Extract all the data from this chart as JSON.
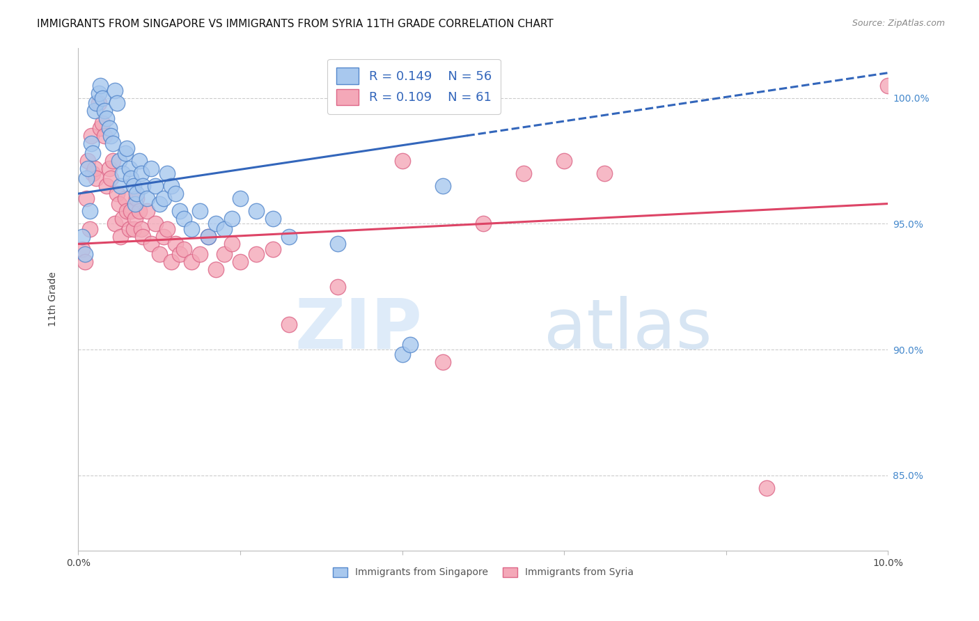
{
  "title": "IMMIGRANTS FROM SINGAPORE VS IMMIGRANTS FROM SYRIA 11TH GRADE CORRELATION CHART",
  "source": "Source: ZipAtlas.com",
  "ylabel": "11th Grade",
  "xlim": [
    0.0,
    10.0
  ],
  "ylim": [
    82.0,
    102.0
  ],
  "y_ticks_right": [
    85.0,
    90.0,
    95.0,
    100.0
  ],
  "y_tick_labels_right": [
    "85.0%",
    "90.0%",
    "95.0%",
    "100.0%"
  ],
  "legend_r_singapore": "R = 0.149",
  "legend_n_singapore": "N = 56",
  "legend_r_syria": "R = 0.109",
  "legend_n_syria": "N = 61",
  "color_singapore": "#A8C8EE",
  "color_syria": "#F4A8B8",
  "color_singapore_line": "#3366BB",
  "color_syria_line": "#DD4466",
  "color_singapore_edge": "#5588CC",
  "color_syria_edge": "#DD6688",
  "background_color": "#FFFFFF",
  "grid_color": "#CCCCCC",
  "title_fontsize": 11,
  "source_fontsize": 9,
  "sg_line_x0": 0.0,
  "sg_line_y0": 96.2,
  "sg_line_x1": 10.0,
  "sg_line_y1": 101.0,
  "sg_solid_end": 4.8,
  "sy_line_x0": 0.0,
  "sy_line_y0": 94.2,
  "sy_line_x1": 10.0,
  "sy_line_y1": 95.8,
  "singapore_scatter_x": [
    0.05,
    0.08,
    0.1,
    0.12,
    0.14,
    0.16,
    0.18,
    0.2,
    0.22,
    0.25,
    0.27,
    0.3,
    0.32,
    0.35,
    0.38,
    0.4,
    0.43,
    0.45,
    0.48,
    0.5,
    0.52,
    0.55,
    0.58,
    0.6,
    0.63,
    0.65,
    0.68,
    0.7,
    0.72,
    0.75,
    0.78,
    0.8,
    0.85,
    0.9,
    0.95,
    1.0,
    1.05,
    1.1,
    1.15,
    1.2,
    1.25,
    1.3,
    1.4,
    1.5,
    1.6,
    1.7,
    1.8,
    1.9,
    2.0,
    2.2,
    2.4,
    2.6,
    3.2,
    4.0,
    4.1,
    4.5
  ],
  "singapore_scatter_y": [
    94.5,
    93.8,
    96.8,
    97.2,
    95.5,
    98.2,
    97.8,
    99.5,
    99.8,
    100.2,
    100.5,
    100.0,
    99.5,
    99.2,
    98.8,
    98.5,
    98.2,
    100.3,
    99.8,
    97.5,
    96.5,
    97.0,
    97.8,
    98.0,
    97.2,
    96.8,
    96.5,
    95.8,
    96.2,
    97.5,
    97.0,
    96.5,
    96.0,
    97.2,
    96.5,
    95.8,
    96.0,
    97.0,
    96.5,
    96.2,
    95.5,
    95.2,
    94.8,
    95.5,
    94.5,
    95.0,
    94.8,
    95.2,
    96.0,
    95.5,
    95.2,
    94.5,
    94.2,
    89.8,
    90.2,
    96.5
  ],
  "syria_scatter_x": [
    0.05,
    0.08,
    0.1,
    0.12,
    0.14,
    0.16,
    0.18,
    0.2,
    0.22,
    0.25,
    0.27,
    0.3,
    0.32,
    0.35,
    0.38,
    0.4,
    0.43,
    0.45,
    0.48,
    0.5,
    0.52,
    0.55,
    0.58,
    0.6,
    0.63,
    0.65,
    0.68,
    0.7,
    0.72,
    0.75,
    0.78,
    0.8,
    0.85,
    0.9,
    0.95,
    1.0,
    1.05,
    1.1,
    1.15,
    1.2,
    1.25,
    1.3,
    1.4,
    1.5,
    1.6,
    1.7,
    1.8,
    1.9,
    2.0,
    2.2,
    2.4,
    2.6,
    3.2,
    4.0,
    4.5,
    5.0,
    5.5,
    6.0,
    6.5,
    8.5,
    10.0
  ],
  "syria_scatter_y": [
    94.0,
    93.5,
    96.0,
    97.5,
    94.8,
    98.5,
    97.0,
    97.2,
    96.8,
    99.8,
    98.8,
    99.0,
    98.5,
    96.5,
    97.2,
    96.8,
    97.5,
    95.0,
    96.2,
    95.8,
    94.5,
    95.2,
    96.0,
    95.5,
    94.8,
    95.5,
    94.8,
    95.2,
    96.0,
    95.5,
    94.8,
    94.5,
    95.5,
    94.2,
    95.0,
    93.8,
    94.5,
    94.8,
    93.5,
    94.2,
    93.8,
    94.0,
    93.5,
    93.8,
    94.5,
    93.2,
    93.8,
    94.2,
    93.5,
    93.8,
    94.0,
    91.0,
    92.5,
    97.5,
    89.5,
    95.0,
    97.0,
    97.5,
    97.0,
    84.5,
    100.5
  ]
}
